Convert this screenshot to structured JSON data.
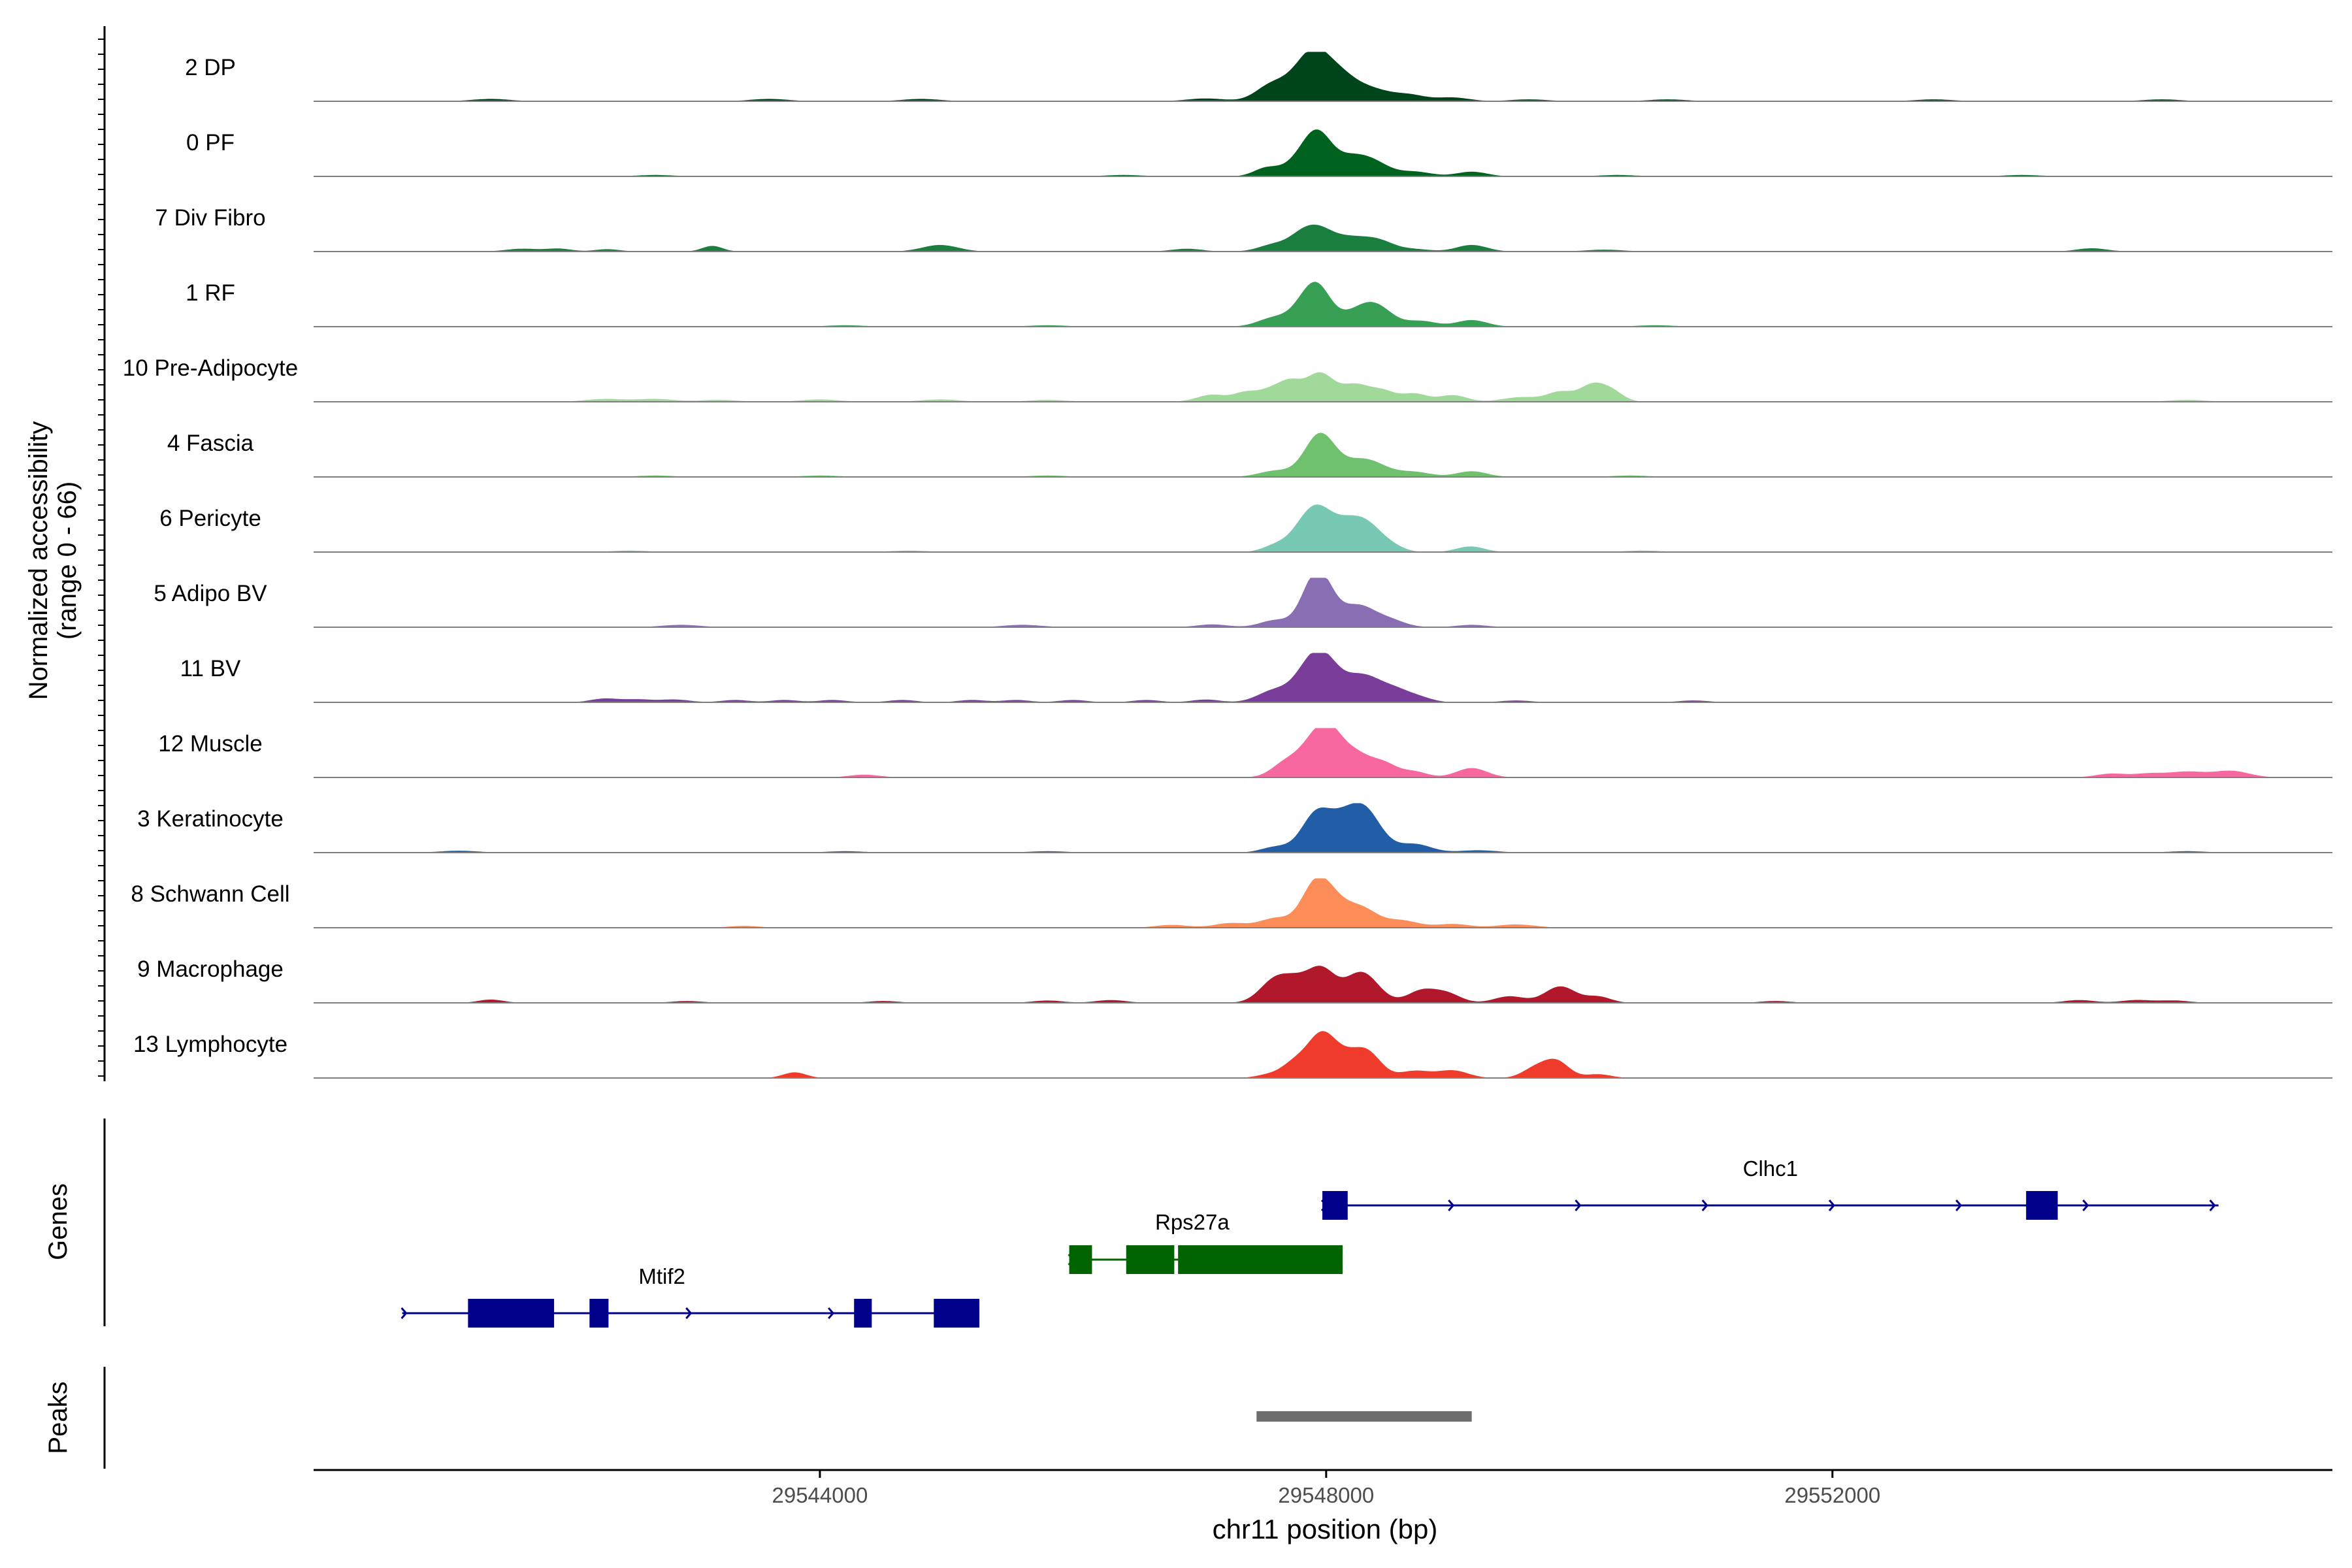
{
  "chart_data": {
    "type": "area",
    "chromosome": "chr11",
    "xlabel": "chr11 position (bp)",
    "xlim": [
      29540000,
      29555950
    ],
    "x_ticks": [
      29544000,
      29548000,
      29552000
    ],
    "x_tick_labels": [
      "29544000",
      "29548000",
      "29552000"
    ],
    "ylabel": [
      "Normalized accessibility",
      "(range 0 - 66)"
    ],
    "ylim": [
      0,
      66
    ],
    "series": [
      {
        "name": "2 DP",
        "color": "#00441b",
        "peaks": [
          [
            29541400,
            0.05,
            150
          ],
          [
            29543600,
            0.05,
            150
          ],
          [
            29544800,
            0.05,
            150
          ],
          [
            29547050,
            0.06,
            150
          ],
          [
            29547550,
            0.2,
            120
          ],
          [
            29547650,
            0.22,
            140
          ],
          [
            29547780,
            0.28,
            100
          ],
          [
            29547920,
            0.9,
            110
          ],
          [
            29548080,
            0.32,
            100
          ],
          [
            29548200,
            0.32,
            120
          ],
          [
            29548400,
            0.18,
            120
          ],
          [
            29548650,
            0.14,
            130
          ],
          [
            29549000,
            0.08,
            130
          ],
          [
            29549600,
            0.04,
            150
          ],
          [
            29550700,
            0.04,
            150
          ],
          [
            29552800,
            0.04,
            150
          ],
          [
            29554600,
            0.04,
            150
          ]
        ]
      },
      {
        "name": "0 PF",
        "color": "#00621f",
        "peaks": [
          [
            29542700,
            0.03,
            150
          ],
          [
            29546400,
            0.03,
            150
          ],
          [
            29547530,
            0.18,
            100
          ],
          [
            29547770,
            0.25,
            110
          ],
          [
            29547930,
            0.85,
            110
          ],
          [
            29548200,
            0.4,
            140
          ],
          [
            29548400,
            0.2,
            120
          ],
          [
            29548700,
            0.1,
            130
          ],
          [
            29549150,
            0.1,
            120
          ],
          [
            29550300,
            0.03,
            150
          ],
          [
            29553500,
            0.03,
            150
          ]
        ]
      },
      {
        "name": "7 Div Fibro",
        "color": "#1a7e3f",
        "peaks": [
          [
            29541650,
            0.06,
            130
          ],
          [
            29541940,
            0.06,
            100
          ],
          [
            29542320,
            0.05,
            100
          ],
          [
            29543150,
            0.12,
            80
          ],
          [
            29544950,
            0.14,
            140
          ],
          [
            29546900,
            0.06,
            120
          ],
          [
            29547590,
            0.15,
            120
          ],
          [
            29547790,
            0.2,
            100
          ],
          [
            29547930,
            0.44,
            120
          ],
          [
            29548190,
            0.27,
            140
          ],
          [
            29548420,
            0.2,
            120
          ],
          [
            29548700,
            0.05,
            120
          ],
          [
            29549150,
            0.14,
            120
          ],
          [
            29550200,
            0.04,
            150
          ],
          [
            29554050,
            0.07,
            120
          ]
        ]
      },
      {
        "name": "1 RF",
        "color": "#37a055",
        "peaks": [
          [
            29544200,
            0.03,
            150
          ],
          [
            29545800,
            0.03,
            150
          ],
          [
            29547600,
            0.2,
            130
          ],
          [
            29547780,
            0.14,
            90
          ],
          [
            29547920,
            0.88,
            110
          ],
          [
            29548280,
            0.36,
            150
          ],
          [
            29548420,
            0.24,
            120
          ],
          [
            29548750,
            0.12,
            120
          ],
          [
            29549150,
            0.14,
            120
          ],
          [
            29550600,
            0.03,
            150
          ]
        ]
      },
      {
        "name": "10 Pre-Adipocyte",
        "color": "#a1d99b",
        "peaks": [
          [
            29542300,
            0.06,
            150
          ],
          [
            29542700,
            0.06,
            150
          ],
          [
            29543200,
            0.04,
            150
          ],
          [
            29544000,
            0.05,
            150
          ],
          [
            29544950,
            0.05,
            150
          ],
          [
            29545800,
            0.04,
            150
          ],
          [
            29547100,
            0.15,
            120
          ],
          [
            29547360,
            0.18,
            90
          ],
          [
            29547560,
            0.24,
            100
          ],
          [
            29547720,
            0.36,
            90
          ],
          [
            29547950,
            0.6,
            110
          ],
          [
            29548230,
            0.35,
            110
          ],
          [
            29548450,
            0.22,
            100
          ],
          [
            29548700,
            0.17,
            100
          ],
          [
            29549000,
            0.14,
            110
          ],
          [
            29549550,
            0.1,
            150
          ],
          [
            29549850,
            0.2,
            100
          ],
          [
            29550100,
            0.35,
            100
          ],
          [
            29550260,
            0.2,
            90
          ],
          [
            29554800,
            0.04,
            150
          ]
        ]
      },
      {
        "name": "4 Fascia",
        "color": "#70c16e",
        "peaks": [
          [
            29542700,
            0.03,
            150
          ],
          [
            29544000,
            0.03,
            150
          ],
          [
            29545800,
            0.03,
            150
          ],
          [
            29547600,
            0.13,
            130
          ],
          [
            29547950,
            0.9,
            120
          ],
          [
            29548300,
            0.38,
            160
          ],
          [
            29548700,
            0.1,
            130
          ],
          [
            29549150,
            0.12,
            120
          ],
          [
            29550400,
            0.03,
            150
          ]
        ]
      },
      {
        "name": "6 Pericyte",
        "color": "#78c9b4",
        "peaks": [
          [
            29542500,
            0.03,
            150
          ],
          [
            29544700,
            0.03,
            150
          ],
          [
            29547600,
            0.14,
            100
          ],
          [
            29547780,
            0.22,
            100
          ],
          [
            29547930,
            0.88,
            120
          ],
          [
            29548150,
            0.42,
            110
          ],
          [
            29548320,
            0.55,
            120
          ],
          [
            29548520,
            0.1,
            100
          ],
          [
            29549140,
            0.12,
            110
          ],
          [
            29550500,
            0.03,
            150
          ]
        ]
      },
      {
        "name": "5 Adipo BV",
        "color": "#8a6eb3",
        "peaks": [
          [
            29542900,
            0.05,
            150
          ],
          [
            29545600,
            0.05,
            150
          ],
          [
            29547100,
            0.06,
            120
          ],
          [
            29547600,
            0.15,
            120
          ],
          [
            29547890,
            0.75,
            100
          ],
          [
            29547990,
            0.6,
            100
          ],
          [
            29548250,
            0.45,
            130
          ],
          [
            29548500,
            0.15,
            120
          ],
          [
            29549150,
            0.05,
            120
          ]
        ]
      },
      {
        "name": "11 BV",
        "color": "#7a3e9a",
        "peaks": [
          [
            29542300,
            0.08,
            110
          ],
          [
            29542560,
            0.06,
            110
          ],
          [
            29542850,
            0.06,
            120
          ],
          [
            29543330,
            0.05,
            110
          ],
          [
            29543720,
            0.05,
            110
          ],
          [
            29544100,
            0.05,
            110
          ],
          [
            29544650,
            0.05,
            110
          ],
          [
            29545200,
            0.05,
            110
          ],
          [
            29545550,
            0.05,
            110
          ],
          [
            29546000,
            0.05,
            110
          ],
          [
            29546580,
            0.05,
            110
          ],
          [
            29547050,
            0.06,
            110
          ],
          [
            29547590,
            0.25,
            130
          ],
          [
            29547870,
            0.7,
            120
          ],
          [
            29548000,
            0.55,
            110
          ],
          [
            29548280,
            0.58,
            160
          ],
          [
            29548570,
            0.2,
            120
          ],
          [
            29548760,
            0.07,
            100
          ],
          [
            29549500,
            0.04,
            120
          ],
          [
            29550900,
            0.04,
            120
          ]
        ]
      },
      {
        "name": "12 Muscle",
        "color": "#f768a1",
        "peaks": [
          [
            29544350,
            0.06,
            120
          ],
          [
            29547680,
            0.3,
            110
          ],
          [
            29547920,
            0.8,
            120
          ],
          [
            29548050,
            0.55,
            100
          ],
          [
            29548230,
            0.45,
            110
          ],
          [
            29548450,
            0.3,
            110
          ],
          [
            29548700,
            0.12,
            100
          ],
          [
            29549150,
            0.2,
            120
          ],
          [
            29554200,
            0.08,
            120
          ],
          [
            29554500,
            0.08,
            120
          ],
          [
            29554800,
            0.12,
            140
          ],
          [
            29555150,
            0.14,
            140
          ]
        ]
      },
      {
        "name": "3 Keratinocyte",
        "color": "#225ea8",
        "peaks": [
          [
            29541150,
            0.04,
            150
          ],
          [
            29544200,
            0.03,
            150
          ],
          [
            29545800,
            0.03,
            150
          ],
          [
            29547600,
            0.12,
            110
          ],
          [
            29547930,
            0.86,
            120
          ],
          [
            29548110,
            0.2,
            90
          ],
          [
            29548280,
            1.0,
            140
          ],
          [
            29548700,
            0.18,
            130
          ],
          [
            29549200,
            0.05,
            150
          ],
          [
            29554800,
            0.03,
            150
          ]
        ]
      },
      {
        "name": "8 Schwann Cell",
        "color": "#fc8d59",
        "peaks": [
          [
            29543400,
            0.04,
            120
          ],
          [
            29546780,
            0.06,
            130
          ],
          [
            29547250,
            0.1,
            130
          ],
          [
            29547600,
            0.2,
            120
          ],
          [
            29547910,
            0.85,
            110
          ],
          [
            29548050,
            0.42,
            110
          ],
          [
            29548270,
            0.42,
            130
          ],
          [
            29548600,
            0.15,
            130
          ],
          [
            29549000,
            0.08,
            130
          ],
          [
            29549500,
            0.07,
            150
          ]
        ]
      },
      {
        "name": "9 Macrophage",
        "color": "#b2182b",
        "peaks": [
          [
            29541400,
            0.07,
            100
          ],
          [
            29542950,
            0.04,
            120
          ],
          [
            29544500,
            0.04,
            120
          ],
          [
            29545800,
            0.05,
            120
          ],
          [
            29546300,
            0.06,
            120
          ],
          [
            29547600,
            0.5,
            120
          ],
          [
            29547770,
            0.3,
            100
          ],
          [
            29547960,
            0.7,
            110
          ],
          [
            29548280,
            0.65,
            130
          ],
          [
            29548750,
            0.25,
            110
          ],
          [
            29548950,
            0.2,
            110
          ],
          [
            29549450,
            0.14,
            120
          ],
          [
            29549850,
            0.35,
            120
          ],
          [
            29550150,
            0.13,
            100
          ],
          [
            29551550,
            0.04,
            120
          ],
          [
            29553950,
            0.06,
            120
          ],
          [
            29554400,
            0.06,
            120
          ],
          [
            29554700,
            0.05,
            120
          ]
        ]
      },
      {
        "name": "13 Lymphocyte",
        "color": "#ef3b2c",
        "peaks": [
          [
            29543800,
            0.12,
            90
          ],
          [
            29547550,
            0.07,
            100
          ],
          [
            29547750,
            0.3,
            100
          ],
          [
            29547960,
            0.85,
            110
          ],
          [
            29548200,
            0.48,
            140
          ],
          [
            29548350,
            0.3,
            100
          ],
          [
            29548700,
            0.15,
            120
          ],
          [
            29549000,
            0.16,
            120
          ],
          [
            29549650,
            0.2,
            100
          ],
          [
            29549820,
            0.35,
            100
          ],
          [
            29550150,
            0.08,
            100
          ]
        ]
      }
    ],
    "gene_track": {
      "ylabel": "Genes",
      "genes": [
        {
          "name": "Clhc1",
          "strand": "+",
          "color": "#00008b",
          "start": 29547970,
          "end": 29555050,
          "exons": [
            [
              29547970,
              29548170
            ],
            [
              29553530,
              29553780
            ]
          ]
        },
        {
          "name": "Rps27a",
          "strand": "+",
          "color": "#006400",
          "start": 29545970,
          "end": 29548130,
          "exons": [
            [
              29545970,
              29546150
            ],
            [
              29546420,
              29546800
            ],
            [
              29546830,
              29548130
            ]
          ]
        },
        {
          "name": "Mtif2",
          "strand": "+",
          "color": "#00008b",
          "start": 29540700,
          "end": 29545260,
          "exons": [
            [
              29541220,
              29541900
            ],
            [
              29542180,
              29542330
            ],
            [
              29544270,
              29544410
            ],
            [
              29544900,
              29545260
            ]
          ]
        }
      ]
    },
    "peak_track": {
      "ylabel": "Peaks",
      "color": "#6e6e6e",
      "peaks": [
        [
          29547450,
          29549150
        ]
      ]
    }
  }
}
